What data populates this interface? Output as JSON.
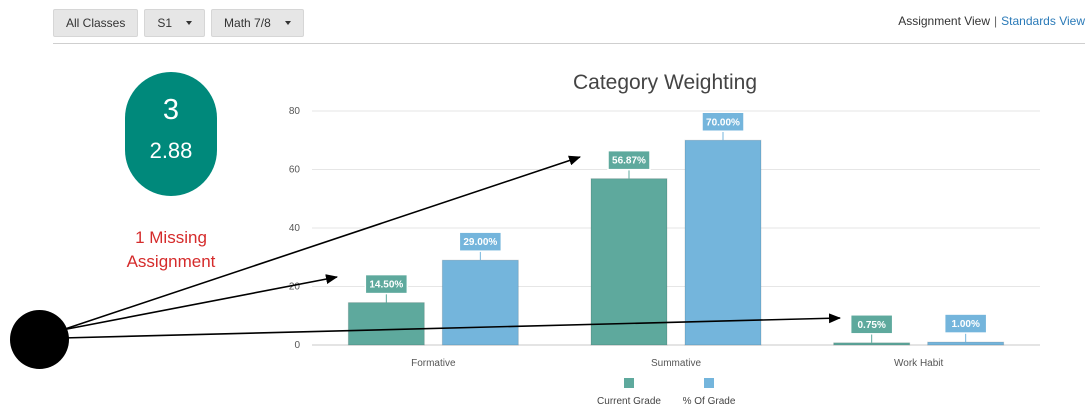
{
  "toolbar": {
    "class_filter": "All Classes",
    "term": "S1",
    "course": "Math 7/8"
  },
  "views": {
    "assignment": "Assignment View",
    "separator": "|",
    "standards": "Standards View"
  },
  "grade": {
    "letter": "3",
    "score": "2.88"
  },
  "missing": {
    "line1": "1 Missing",
    "line2": "Assignment"
  },
  "colors": {
    "current": "#5ea99d",
    "percent": "#74b5dc",
    "pill": "#00897b",
    "missing": "#d52b2b"
  },
  "chart_data": {
    "type": "bar",
    "title": "Category Weighting",
    "categories": [
      "Formative",
      "Summative",
      "Work Habit"
    ],
    "series": [
      {
        "name": "Current Grade",
        "values": [
          14.5,
          56.87,
          0.75
        ],
        "labels": [
          "14.50%",
          "56.87%",
          "0.75%"
        ],
        "color": "#5ea99d"
      },
      {
        "name": "% Of Grade",
        "values": [
          29.0,
          70.0,
          1.0
        ],
        "labels": [
          "29.00%",
          "70.00%",
          "1.00%"
        ],
        "color": "#74b5dc"
      }
    ],
    "ylim": [
      0,
      80
    ],
    "yticks": [
      "0",
      "20",
      "40",
      "60",
      "80"
    ],
    "grid": true,
    "legend": "bottom"
  }
}
